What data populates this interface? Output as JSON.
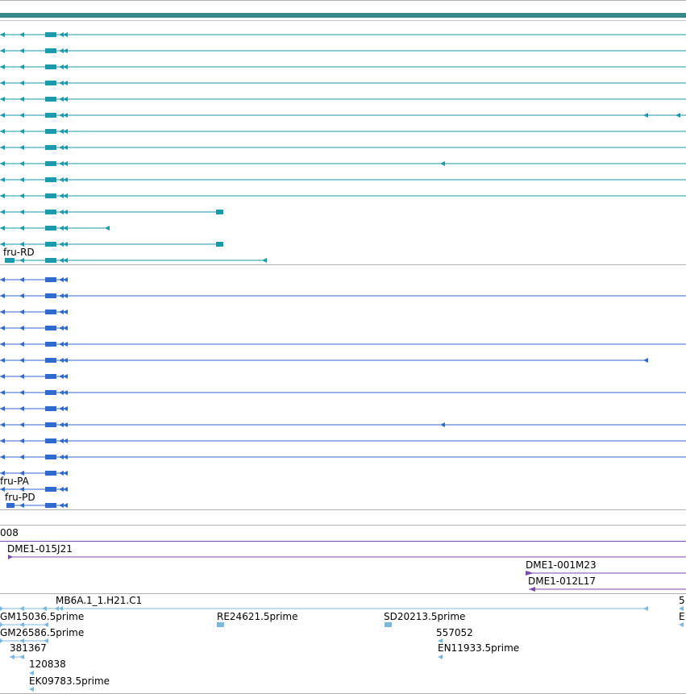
{
  "colors": {
    "track_bar": "#3a8a8a",
    "transcript_teal": "#1a9aaa",
    "transcript_blue": "#2f6ad0",
    "clone_purple": "#7a4ab0",
    "est_light": "#7ab8e0",
    "divider": "#b0b0b0"
  },
  "tracks": {
    "mrna_group": {
      "labels": {
        "row13": "fru-RD"
      },
      "rows": [
        {
          "tail": null,
          "alt": null
        },
        {
          "tail": null,
          "alt": null
        },
        {
          "tail": null,
          "alt": null
        },
        {
          "tail": null,
          "alt": null
        },
        {
          "tail": null,
          "alt": null
        },
        {
          "tail": null,
          "alt": "far"
        },
        {
          "tail": null,
          "alt": null
        },
        {
          "tail": null,
          "alt": null
        },
        {
          "tail": null,
          "alt": "mid"
        },
        {
          "tail": null,
          "alt": null
        },
        {
          "tail": null,
          "alt": null
        },
        {
          "tail": "box",
          "alt": null
        },
        {
          "tail": "arrow",
          "alt": null
        },
        {
          "tail": "box",
          "alt": null
        },
        {
          "tail": "arrow-long",
          "alt": null
        }
      ]
    },
    "protein_group": {
      "label_pa": "fru-PA",
      "label_pd": "fru-PD"
    },
    "clones": {
      "label_008": "008",
      "label_015": "DME1-015J21",
      "label_001": "DME1-001M23",
      "label_012": "DME1-012L17"
    },
    "ests": {
      "label_mb6a": "MB6A.1_1.H21.C1",
      "label_5": "5",
      "label_gm15036": "GM15036.5prime",
      "label_re24621": "RE24621.5prime",
      "label_sd20213": "SD20213.5prime",
      "label_e": "E",
      "label_gm26586": "GM26586.5prime",
      "label_557052": "557052",
      "label_381367": "381367",
      "label_en11933": "EN11933.5prime",
      "label_120838": "120838",
      "label_ek09783": "EK09783.5prime"
    }
  }
}
